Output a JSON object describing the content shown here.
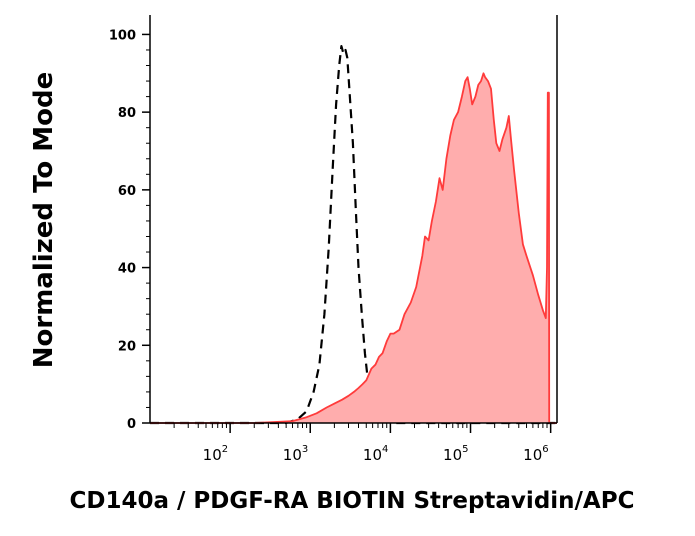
{
  "chart_data": {
    "type": "area",
    "title": "",
    "xlabel": "CD140a / PDGF-RA BIOTIN Streptavidin/APC",
    "ylabel": "Normalized To Mode",
    "xscale": "log",
    "xlim": [
      10,
      1200000
    ],
    "ylim": [
      0,
      105
    ],
    "x_ticks": [
      {
        "base": "10",
        "exp": "2",
        "value": 100
      },
      {
        "base": "10",
        "exp": "3",
        "value": 1000
      },
      {
        "base": "10",
        "exp": "4",
        "value": 10000
      },
      {
        "base": "10",
        "exp": "5",
        "value": 100000
      },
      {
        "base": "10",
        "exp": "6",
        "value": 1000000
      }
    ],
    "y_ticks": [
      {
        "label": "0",
        "value": 0
      },
      {
        "label": "20",
        "value": 20
      },
      {
        "label": "40",
        "value": 40
      },
      {
        "label": "60",
        "value": 60
      },
      {
        "label": "80",
        "value": 80
      },
      {
        "label": "100",
        "value": 100
      }
    ],
    "grid": false,
    "legend": "none",
    "series": [
      {
        "style": "dashed",
        "color": "#000000",
        "fill": "none",
        "points": [
          [
            10,
            0
          ],
          [
            300,
            0
          ],
          [
            500,
            0
          ],
          [
            700,
            1
          ],
          [
            900,
            3
          ],
          [
            1100,
            8
          ],
          [
            1300,
            15
          ],
          [
            1500,
            28
          ],
          [
            1700,
            45
          ],
          [
            1900,
            65
          ],
          [
            2100,
            82
          ],
          [
            2300,
            92
          ],
          [
            2450,
            97
          ],
          [
            2600,
            95
          ],
          [
            2750,
            96
          ],
          [
            2900,
            94
          ],
          [
            3100,
            85
          ],
          [
            3400,
            72
          ],
          [
            3700,
            55
          ],
          [
            4000,
            40
          ],
          [
            4400,
            28
          ],
          [
            4800,
            18
          ],
          [
            5300,
            10
          ],
          [
            6000,
            4
          ],
          [
            7000,
            1.5
          ],
          [
            8500,
            0.5
          ],
          [
            11000,
            0
          ],
          [
            1200000,
            0
          ]
        ]
      },
      {
        "style": "solid",
        "color": "#ff3b3b",
        "fill": "#ffadad",
        "points": [
          [
            10,
            0
          ],
          [
            200,
            0
          ],
          [
            600,
            0.5
          ],
          [
            900,
            1.5
          ],
          [
            1200,
            2.5
          ],
          [
            1600,
            4
          ],
          [
            2000,
            5
          ],
          [
            2500,
            6
          ],
          [
            3000,
            7
          ],
          [
            3500,
            8
          ],
          [
            4000,
            9
          ],
          [
            4500,
            10
          ],
          [
            5000,
            11
          ],
          [
            5800,
            14
          ],
          [
            6500,
            15
          ],
          [
            7200,
            17
          ],
          [
            8000,
            18
          ],
          [
            9000,
            21
          ],
          [
            10000,
            23
          ],
          [
            11000,
            23
          ],
          [
            13000,
            24
          ],
          [
            15000,
            28
          ],
          [
            18000,
            31
          ],
          [
            21000,
            35
          ],
          [
            25000,
            43
          ],
          [
            27000,
            48
          ],
          [
            30000,
            47
          ],
          [
            33000,
            52
          ],
          [
            37000,
            57
          ],
          [
            41000,
            63
          ],
          [
            45000,
            60
          ],
          [
            50000,
            68
          ],
          [
            56000,
            74
          ],
          [
            62000,
            78
          ],
          [
            70000,
            80
          ],
          [
            78000,
            84
          ],
          [
            86000,
            88
          ],
          [
            92000,
            89
          ],
          [
            98000,
            86
          ],
          [
            105000,
            82
          ],
          [
            115000,
            84
          ],
          [
            125000,
            87
          ],
          [
            135000,
            88
          ],
          [
            145000,
            90
          ],
          [
            152000,
            89
          ],
          [
            165000,
            88
          ],
          [
            180000,
            86
          ],
          [
            195000,
            78
          ],
          [
            210000,
            72
          ],
          [
            230000,
            70
          ],
          [
            250000,
            73
          ],
          [
            280000,
            76
          ],
          [
            300000,
            79
          ],
          [
            320000,
            73
          ],
          [
            350000,
            65
          ],
          [
            400000,
            54
          ],
          [
            450000,
            46
          ],
          [
            500000,
            43
          ],
          [
            600000,
            38
          ],
          [
            700000,
            33
          ],
          [
            800000,
            29
          ],
          [
            870000,
            27
          ],
          [
            900000,
            40
          ],
          [
            920000,
            85
          ],
          [
            950000,
            85
          ],
          [
            960000,
            0
          ],
          [
            1200000,
            0
          ]
        ]
      }
    ]
  }
}
